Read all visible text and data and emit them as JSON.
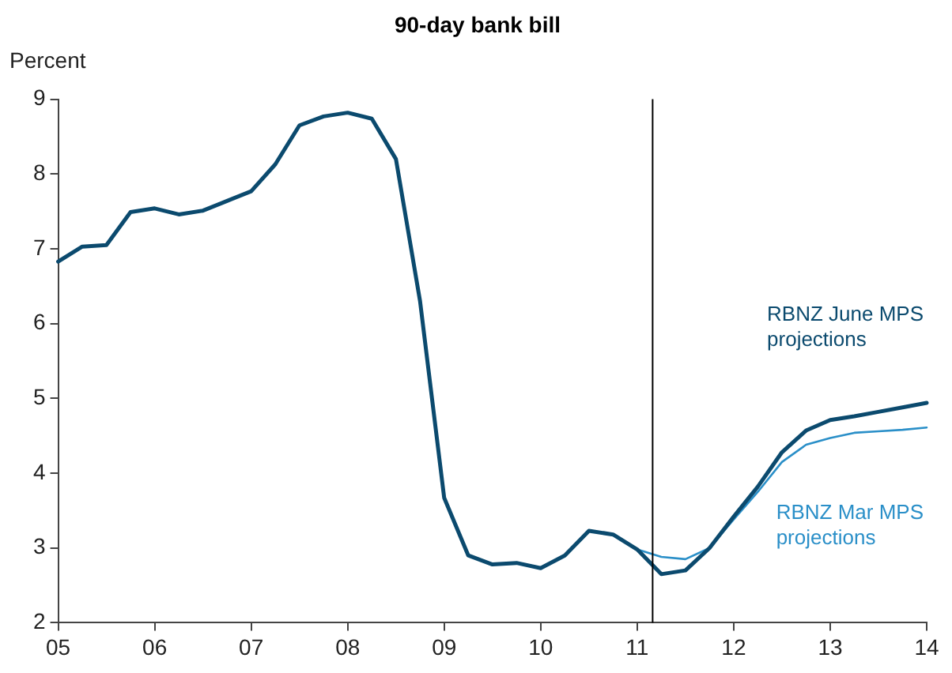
{
  "chart_data": {
    "type": "line",
    "title": "90-day bank bill",
    "ylabel": "Percent",
    "xlim": [
      5,
      14
    ],
    "xticks": [
      {
        "value": 5,
        "label": "05"
      },
      {
        "value": 6,
        "label": "06"
      },
      {
        "value": 7,
        "label": "07"
      },
      {
        "value": 8,
        "label": "08"
      },
      {
        "value": 9,
        "label": "09"
      },
      {
        "value": 10,
        "label": "10"
      },
      {
        "value": 11,
        "label": "11"
      },
      {
        "value": 12,
        "label": "12"
      },
      {
        "value": 13,
        "label": "13"
      },
      {
        "value": 14,
        "label": "14"
      }
    ],
    "ylim": [
      2,
      9
    ],
    "yticks": [
      2,
      3,
      4,
      5,
      6,
      7,
      8,
      9
    ],
    "series": [
      {
        "name": "RBNZ June MPS projections",
        "color": "#0b4a6e",
        "x": [
          5,
          5.25,
          5.5,
          5.75,
          6,
          6.25,
          6.5,
          6.75,
          7,
          7.25,
          7.5,
          7.75,
          8,
          8.25,
          8.5,
          8.75,
          9,
          9.25,
          9.5,
          9.75,
          10,
          10.25,
          10.5,
          10.75,
          11,
          11.25,
          11.5,
          11.75,
          12,
          12.25,
          12.5,
          12.75,
          13,
          13.25,
          13.5,
          13.75,
          14
        ],
        "values": [
          6.83,
          7.03,
          7.05,
          7.49,
          7.54,
          7.46,
          7.51,
          7.64,
          7.77,
          8.13,
          8.65,
          8.77,
          8.82,
          8.74,
          8.2,
          6.3,
          3.67,
          2.9,
          2.78,
          2.8,
          2.73,
          2.9,
          3.23,
          3.18,
          2.98,
          2.65,
          2.7,
          3.0,
          3.42,
          3.82,
          4.28,
          4.57,
          4.71,
          4.76,
          4.82,
          4.88,
          4.94
        ]
      },
      {
        "name": "RBNZ Mar MPS projections",
        "color": "#2a8fc8",
        "x": [
          11,
          11.25,
          11.5,
          11.75,
          12,
          12.25,
          12.5,
          12.75,
          13,
          13.25,
          13.5,
          13.75,
          14
        ],
        "values": [
          2.98,
          2.88,
          2.85,
          3.0,
          3.38,
          3.75,
          4.15,
          4.38,
          4.47,
          4.54,
          4.56,
          4.58,
          4.61
        ]
      }
    ],
    "ref_lines": [
      {
        "axis": "x",
        "value": 11.16,
        "color": "#000000"
      }
    ],
    "marker": "none",
    "line_style": "solid",
    "legend": false
  }
}
